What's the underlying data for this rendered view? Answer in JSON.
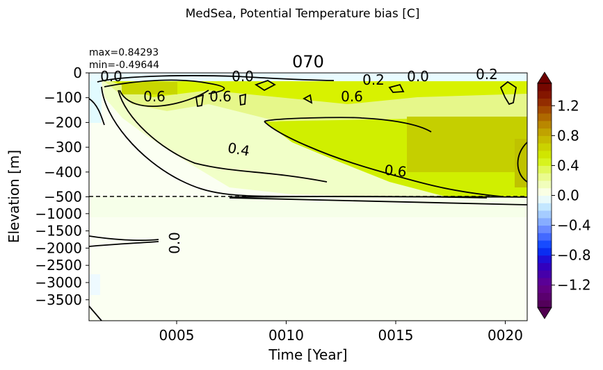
{
  "chart_data": {
    "type": "heatmap",
    "suptitle": "MedSea, Potential Temperature bias [C]",
    "title": "070",
    "stats": {
      "max": "max=0.84293",
      "min": "min=-0.49644"
    },
    "xlabel": "Time [Year]",
    "ylabel": "Elevation [m]",
    "xlim": [
      1,
      21
    ],
    "x_ticks": [
      {
        "value": 5,
        "label": "0005"
      },
      {
        "value": 10,
        "label": "0010"
      },
      {
        "value": 15,
        "label": "0015"
      },
      {
        "value": 20,
        "label": "0020"
      }
    ],
    "y_ticks": [
      "0",
      "−100",
      "−200",
      "−300",
      "−400",
      "−500",
      "−1000",
      "−1500",
      "−2000",
      "−2500",
      "−3000",
      "−3500"
    ],
    "y_break": -500,
    "colorbar": {
      "range": [
        -1.5,
        1.5
      ],
      "step": 0.1,
      "ticks": [
        "1.2",
        "0.8",
        "0.4",
        "0.0",
        "−0.4",
        "−0.8",
        "−1.2"
      ],
      "extend": "both"
    },
    "contour_labels": [
      "0.0",
      "0.0",
      "0.2",
      "0.0",
      "0.2",
      "0.6",
      "0.6",
      "0.6",
      "0.4",
      "0.6",
      "0.0"
    ],
    "description_values": {
      "bias_0_to_100m_mid_period": 0.6,
      "bias_200_to_450m_late_period": 0.7,
      "bias_deep_layer": 0.0
    }
  }
}
